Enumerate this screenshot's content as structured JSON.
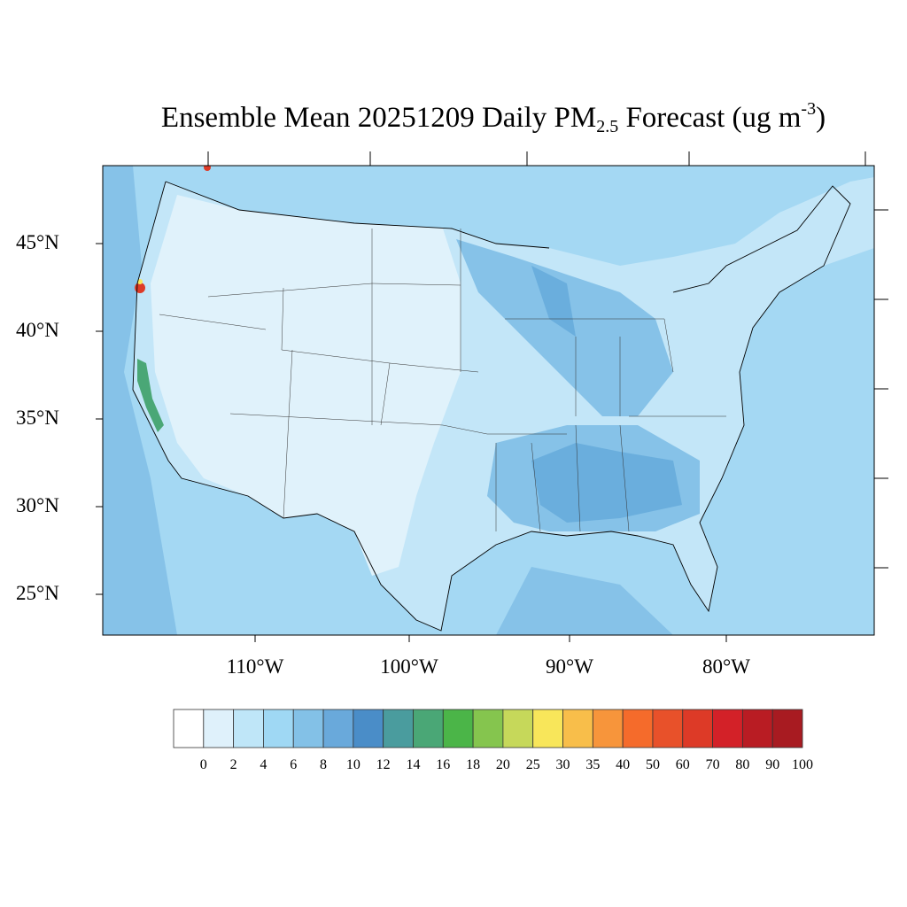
{
  "title": {
    "main": "Ensemble Mean 20251209 Daily PM",
    "sub": "2.5",
    "rest": " Forecast (ug m",
    "sup": "-3",
    "end": ")"
  },
  "lat_labels": [
    "45°N",
    "40°N",
    "35°N",
    "30°N",
    "25°N"
  ],
  "lon_labels": [
    "110°W",
    "100°W",
    "90°W",
    "80°W"
  ],
  "colorbar": {
    "labels": [
      "0",
      "2",
      "4",
      "6",
      "8",
      "10",
      "12",
      "14",
      "16",
      "18",
      "20",
      "25",
      "30",
      "35",
      "40",
      "50",
      "60",
      "70",
      "80",
      "90",
      "100"
    ],
    "colors": [
      "#ffffff",
      "#dff1fb",
      "#bfe6f8",
      "#9fd8f4",
      "#83c1e7",
      "#69a9db",
      "#4a8dc8",
      "#4a9c9e",
      "#4aa776",
      "#4bb548",
      "#85c54e",
      "#c6d85a",
      "#f8e65a",
      "#f8be4a",
      "#f7953b",
      "#f56b2b",
      "#e8512a",
      "#dd3a27",
      "#d32128",
      "#b91c23",
      "#a81b21",
      "#8e1518"
    ]
  }
}
